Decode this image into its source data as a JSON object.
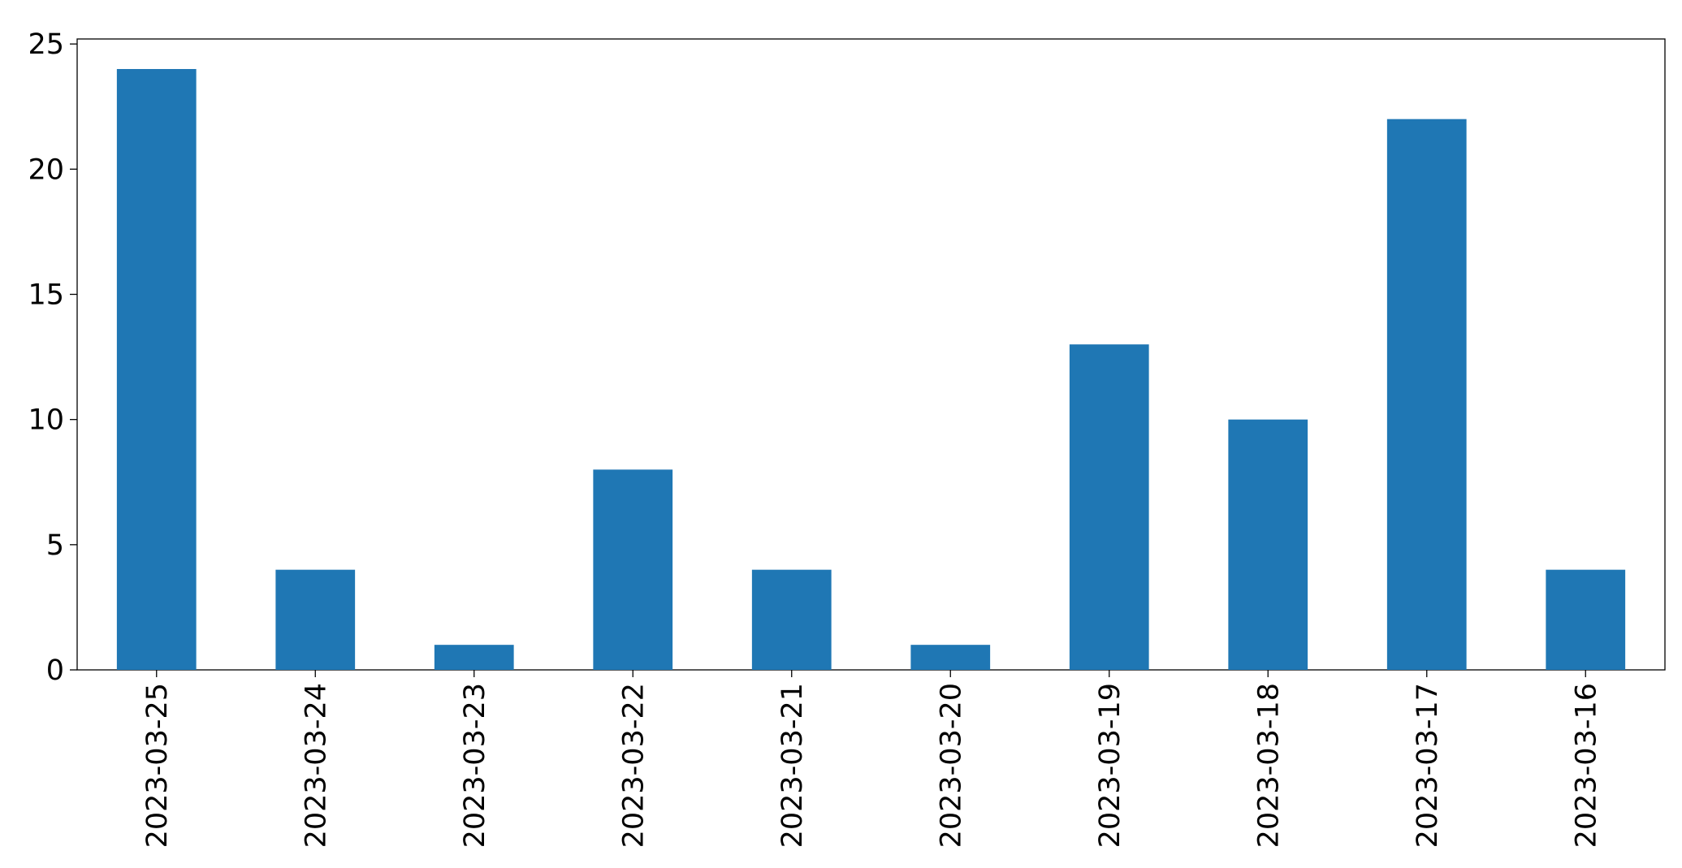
{
  "chart_data": {
    "type": "bar",
    "categories": [
      "2023-03-25",
      "2023-03-24",
      "2023-03-23",
      "2023-03-22",
      "2023-03-21",
      "2023-03-20",
      "2023-03-19",
      "2023-03-18",
      "2023-03-17",
      "2023-03-16"
    ],
    "values": [
      24,
      4,
      1,
      8,
      4,
      1,
      13,
      10,
      22,
      4
    ],
    "color": "#1f77b4",
    "ylim": [
      0,
      25.2
    ],
    "yticks": [
      0,
      5,
      10,
      15,
      20,
      25
    ],
    "grid": false
  }
}
